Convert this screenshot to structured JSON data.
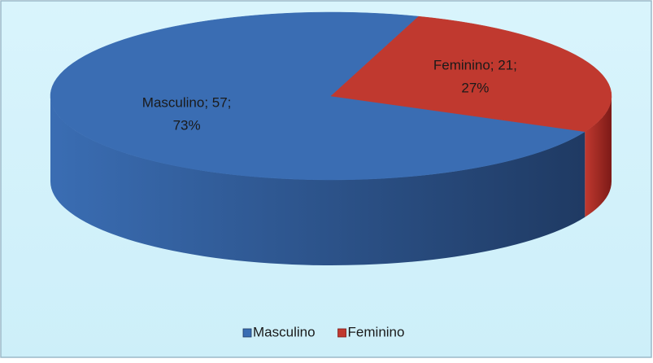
{
  "chart_data": {
    "type": "pie3d",
    "categories": [
      "Masculino",
      "Feminino"
    ],
    "values": [
      57,
      21
    ],
    "value_labels": [
      [
        "Masculino; 57;",
        "73%"
      ],
      [
        "Feminino; 21;",
        "27%"
      ]
    ],
    "colors": [
      "#3a6db3",
      "#c0392f"
    ],
    "side_colors": [
      "#1f3a63",
      "#7d1a17"
    ],
    "legend": "bottom"
  }
}
